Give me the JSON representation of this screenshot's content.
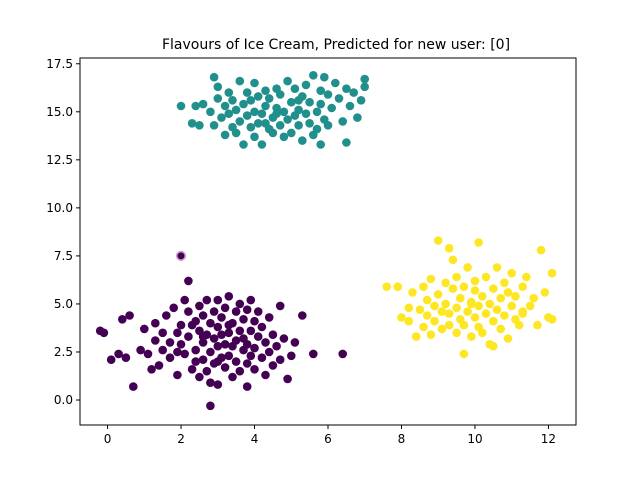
{
  "chart_data": {
    "type": "scatter",
    "title": "Flavours of Ice Cream, Predicted for new user: [0]",
    "xlabel": "",
    "ylabel": "",
    "xlim": [
      -0.75,
      12.75
    ],
    "ylim": [
      -1.3,
      17.8
    ],
    "x_ticks": [
      0,
      2,
      4,
      6,
      8,
      10,
      12
    ],
    "x_tick_labels": [
      "0",
      "2",
      "4",
      "6",
      "8",
      "10",
      "12"
    ],
    "y_ticks": [
      0.0,
      2.5,
      5.0,
      7.5,
      10.0,
      12.5,
      15.0,
      17.5
    ],
    "y_tick_labels": [
      "0.0",
      "2.5",
      "5.0",
      "7.5",
      "10.0",
      "12.5",
      "15.0",
      "17.5"
    ],
    "grid": false,
    "legend": "none",
    "series": [
      {
        "cluster": 0,
        "color": "#440154",
        "points": [
          [
            -0.2,
            3.6
          ],
          [
            0.1,
            2.1
          ],
          [
            0.3,
            2.4
          ],
          [
            0.5,
            2.2
          ],
          [
            0.4,
            4.2
          ],
          [
            0.6,
            4.4
          ],
          [
            0.7,
            0.7
          ],
          [
            0.9,
            2.6
          ],
          [
            1.0,
            3.7
          ],
          [
            1.1,
            2.4
          ],
          [
            1.2,
            1.6
          ],
          [
            1.3,
            3.1
          ],
          [
            1.4,
            1.8
          ],
          [
            1.3,
            4.0
          ],
          [
            1.5,
            3.5
          ],
          [
            1.5,
            2.6
          ],
          [
            1.6,
            4.4
          ],
          [
            1.7,
            3.0
          ],
          [
            1.7,
            2.2
          ],
          [
            1.8,
            4.8
          ],
          [
            1.9,
            3.5
          ],
          [
            1.9,
            2.5
          ],
          [
            1.9,
            1.3
          ],
          [
            2.0,
            3.9
          ],
          [
            2.0,
            2.9
          ],
          [
            2.1,
            5.2
          ],
          [
            2.1,
            2.4
          ],
          [
            2.2,
            4.6
          ],
          [
            2.2,
            3.3
          ],
          [
            2.2,
            6.2
          ],
          [
            2.3,
            1.6
          ],
          [
            2.3,
            3.9
          ],
          [
            2.4,
            2.6
          ],
          [
            2.4,
            4.1
          ],
          [
            2.5,
            3.6
          ],
          [
            2.5,
            4.9
          ],
          [
            2.5,
            1.2
          ],
          [
            2.6,
            2.1
          ],
          [
            2.6,
            3.0
          ],
          [
            2.6,
            4.4
          ],
          [
            2.7,
            5.2
          ],
          [
            2.7,
            3.4
          ],
          [
            2.7,
            1.5
          ],
          [
            2.8,
            2.5
          ],
          [
            2.8,
            4.0
          ],
          [
            2.8,
            0.9
          ],
          [
            2.9,
            3.2
          ],
          [
            2.9,
            4.6
          ],
          [
            2.9,
            1.9
          ],
          [
            3.0,
            2.8
          ],
          [
            3.0,
            3.8
          ],
          [
            3.0,
            5.2
          ],
          [
            3.0,
            0.8
          ],
          [
            3.1,
            2.2
          ],
          [
            3.1,
            3.4
          ],
          [
            3.1,
            4.3
          ],
          [
            3.2,
            1.7
          ],
          [
            3.2,
            2.9
          ],
          [
            3.2,
            4.8
          ],
          [
            3.3,
            3.5
          ],
          [
            3.3,
            2.3
          ],
          [
            3.3,
            5.4
          ],
          [
            3.4,
            1.2
          ],
          [
            3.4,
            4.0
          ],
          [
            3.4,
            2.8
          ],
          [
            3.5,
            3.1
          ],
          [
            3.5,
            4.6
          ],
          [
            3.5,
            2.0
          ],
          [
            3.6,
            3.6
          ],
          [
            3.6,
            1.5
          ],
          [
            3.6,
            5.0
          ],
          [
            3.7,
            2.6
          ],
          [
            3.7,
            4.2
          ],
          [
            3.7,
            3.2
          ],
          [
            3.8,
            1.9
          ],
          [
            3.8,
            2.9
          ],
          [
            3.8,
            4.7
          ],
          [
            3.8,
            0.7
          ],
          [
            3.9,
            3.6
          ],
          [
            3.9,
            2.3
          ],
          [
            3.9,
            5.2
          ],
          [
            4.0,
            4.1
          ],
          [
            4.0,
            2.7
          ],
          [
            4.0,
            1.6
          ],
          [
            4.1,
            3.3
          ],
          [
            4.1,
            4.6
          ],
          [
            4.2,
            2.2
          ],
          [
            4.2,
            3.8
          ],
          [
            4.3,
            1.3
          ],
          [
            4.3,
            3.0
          ],
          [
            4.4,
            4.3
          ],
          [
            4.4,
            2.5
          ],
          [
            4.5,
            3.4
          ],
          [
            4.5,
            1.8
          ],
          [
            4.6,
            2.8
          ],
          [
            4.7,
            4.9
          ],
          [
            4.7,
            2.1
          ],
          [
            4.8,
            3.2
          ],
          [
            4.9,
            1.1
          ],
          [
            5.0,
            2.3
          ],
          [
            5.1,
            3.0
          ],
          [
            5.3,
            4.4
          ],
          [
            5.6,
            2.4
          ],
          [
            6.4,
            2.4
          ],
          [
            -0.1,
            3.5
          ],
          [
            2.8,
            -0.3
          ],
          [
            3.3,
            3.9
          ],
          [
            2.6,
            3.3
          ],
          [
            3.0,
            2.0
          ],
          [
            2.4,
            2.0
          ]
        ]
      },
      {
        "cluster": 1,
        "color": "#21908c",
        "points": [
          [
            2.0,
            15.3
          ],
          [
            2.4,
            15.3
          ],
          [
            2.5,
            14.3
          ],
          [
            2.6,
            15.4
          ],
          [
            2.8,
            15.0
          ],
          [
            2.9,
            14.3
          ],
          [
            3.0,
            16.3
          ],
          [
            3.0,
            15.7
          ],
          [
            3.1,
            14.7
          ],
          [
            3.2,
            15.3
          ],
          [
            3.2,
            13.8
          ],
          [
            3.3,
            16.0
          ],
          [
            3.3,
            14.9
          ],
          [
            3.4,
            14.2
          ],
          [
            3.4,
            15.6
          ],
          [
            3.5,
            13.9
          ],
          [
            3.5,
            15.1
          ],
          [
            3.6,
            16.6
          ],
          [
            3.6,
            14.5
          ],
          [
            3.7,
            15.4
          ],
          [
            3.7,
            13.3
          ],
          [
            3.8,
            14.8
          ],
          [
            3.8,
            16.0
          ],
          [
            3.9,
            14.2
          ],
          [
            3.9,
            15.6
          ],
          [
            4.0,
            13.7
          ],
          [
            4.0,
            15.0
          ],
          [
            4.0,
            16.5
          ],
          [
            4.1,
            14.4
          ],
          [
            4.1,
            15.8
          ],
          [
            4.2,
            13.3
          ],
          [
            4.2,
            14.9
          ],
          [
            4.3,
            16.1
          ],
          [
            4.3,
            15.3
          ],
          [
            4.4,
            14.1
          ],
          [
            4.4,
            15.7
          ],
          [
            4.5,
            13.9
          ],
          [
            4.5,
            14.7
          ],
          [
            4.6,
            16.2
          ],
          [
            4.6,
            15.2
          ],
          [
            4.7,
            14.3
          ],
          [
            4.7,
            15.9
          ],
          [
            4.8,
            13.7
          ],
          [
            4.8,
            15.0
          ],
          [
            4.9,
            16.6
          ],
          [
            4.9,
            14.6
          ],
          [
            5.0,
            15.5
          ],
          [
            5.0,
            13.9
          ],
          [
            5.1,
            14.8
          ],
          [
            5.1,
            16.2
          ],
          [
            5.2,
            15.1
          ],
          [
            5.2,
            14.3
          ],
          [
            5.3,
            15.8
          ],
          [
            5.3,
            13.5
          ],
          [
            5.4,
            14.9
          ],
          [
            5.4,
            16.4
          ],
          [
            5.5,
            14.4
          ],
          [
            5.5,
            15.5
          ],
          [
            5.6,
            13.8
          ],
          [
            5.6,
            16.9
          ],
          [
            5.7,
            15.0
          ],
          [
            5.7,
            14.1
          ],
          [
            5.8,
            16.1
          ],
          [
            5.8,
            15.4
          ],
          [
            5.9,
            14.6
          ],
          [
            5.9,
            16.8
          ],
          [
            6.0,
            15.9
          ],
          [
            6.0,
            14.3
          ],
          [
            6.1,
            15.2
          ],
          [
            6.2,
            16.5
          ],
          [
            6.3,
            15.7
          ],
          [
            6.4,
            14.5
          ],
          [
            6.5,
            16.2
          ],
          [
            6.5,
            13.4
          ],
          [
            6.6,
            15.3
          ],
          [
            6.7,
            16.0
          ],
          [
            6.8,
            14.7
          ],
          [
            6.9,
            15.6
          ],
          [
            7.0,
            16.3
          ],
          [
            7.0,
            16.7
          ],
          [
            2.9,
            16.8
          ],
          [
            2.3,
            14.4
          ],
          [
            5.8,
            13.3
          ],
          [
            4.6,
            14.9
          ],
          [
            5.2,
            15.6
          ],
          [
            4.3,
            14.4
          ]
        ]
      },
      {
        "cluster": 2,
        "color": "#fde725",
        "points": [
          [
            7.6,
            5.9
          ],
          [
            7.9,
            5.9
          ],
          [
            8.0,
            4.3
          ],
          [
            8.2,
            4.8
          ],
          [
            8.2,
            4.1
          ],
          [
            8.3,
            5.6
          ],
          [
            8.4,
            3.3
          ],
          [
            8.5,
            4.7
          ],
          [
            8.6,
            5.9
          ],
          [
            8.6,
            3.8
          ],
          [
            8.7,
            4.4
          ],
          [
            8.7,
            5.2
          ],
          [
            8.8,
            3.4
          ],
          [
            8.8,
            6.3
          ],
          [
            8.9,
            4.9
          ],
          [
            8.9,
            4.1
          ],
          [
            9.0,
            8.3
          ],
          [
            9.0,
            5.5
          ],
          [
            9.1,
            3.7
          ],
          [
            9.1,
            4.6
          ],
          [
            9.2,
            6.1
          ],
          [
            9.2,
            5.0
          ],
          [
            9.3,
            3.9
          ],
          [
            9.3,
            4.5
          ],
          [
            9.4,
            5.8
          ],
          [
            9.4,
            7.3
          ],
          [
            9.5,
            3.5
          ],
          [
            9.5,
            4.8
          ],
          [
            9.5,
            6.4
          ],
          [
            9.6,
            5.3
          ],
          [
            9.6,
            4.2
          ],
          [
            9.7,
            2.4
          ],
          [
            9.7,
            5.9
          ],
          [
            9.7,
            3.9
          ],
          [
            9.8,
            4.6
          ],
          [
            9.8,
            6.9
          ],
          [
            9.9,
            5.1
          ],
          [
            9.9,
            3.3
          ],
          [
            10.0,
            4.3
          ],
          [
            10.0,
            5.7
          ],
          [
            10.0,
            6.2
          ],
          [
            10.1,
            3.8
          ],
          [
            10.1,
            8.2
          ],
          [
            10.1,
            4.9
          ],
          [
            10.2,
            5.4
          ],
          [
            10.2,
            3.5
          ],
          [
            10.3,
            6.4
          ],
          [
            10.3,
            4.5
          ],
          [
            10.4,
            5.0
          ],
          [
            10.4,
            2.9
          ],
          [
            10.5,
            5.8
          ],
          [
            10.5,
            4.1
          ],
          [
            10.6,
            6.9
          ],
          [
            10.6,
            4.7
          ],
          [
            10.7,
            3.7
          ],
          [
            10.7,
            5.3
          ],
          [
            10.8,
            6.1
          ],
          [
            10.8,
            4.4
          ],
          [
            10.9,
            5.6
          ],
          [
            10.9,
            3.2
          ],
          [
            11.0,
            4.9
          ],
          [
            11.0,
            6.6
          ],
          [
            11.1,
            4.2
          ],
          [
            11.1,
            5.4
          ],
          [
            11.2,
            3.9
          ],
          [
            11.3,
            5.9
          ],
          [
            11.3,
            4.6
          ],
          [
            11.4,
            6.4
          ],
          [
            11.5,
            4.9
          ],
          [
            11.6,
            5.3
          ],
          [
            11.7,
            3.9
          ],
          [
            11.8,
            7.8
          ],
          [
            11.9,
            5.6
          ],
          [
            12.0,
            4.3
          ],
          [
            12.1,
            6.6
          ],
          [
            12.1,
            4.2
          ],
          [
            9.3,
            7.9
          ],
          [
            10.5,
            2.8
          ],
          [
            11.3,
            4.5
          ],
          [
            9.9,
            5.0
          ]
        ]
      }
    ],
    "new_user_point": {
      "x": 2.0,
      "y": 7.5,
      "cluster": 0,
      "color": "#440154"
    }
  }
}
